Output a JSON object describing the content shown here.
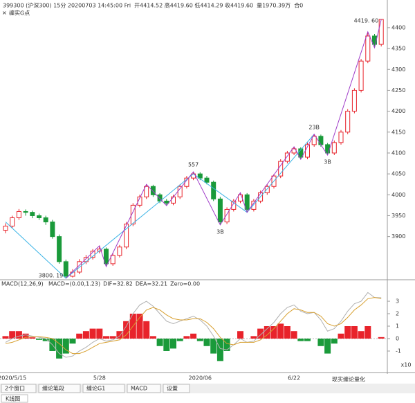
{
  "chart_data": {
    "type": "candlestick",
    "header": [
      {
        "text": "399300 (沪深300) 15分 20200703 14:45:00 Fri",
        "color": "#333333"
      },
      {
        "text": "开4414.52 高4419.60 低4414.29 收4419.60",
        "color": "#333333"
      },
      {
        "text": "量1970.39万",
        "color": "#e08a00"
      },
      {
        "text": "合0",
        "color": "#333333"
      }
    ],
    "indicator_title": "缠实G点",
    "categories": [
      null,
      "2020/5/15",
      null,
      null,
      null,
      null,
      null,
      null,
      null,
      null,
      null,
      null,
      null,
      null,
      "5/28",
      null,
      null,
      null,
      null,
      null,
      null,
      null,
      null,
      null,
      null,
      null,
      null,
      null,
      null,
      "2020/06",
      null,
      null,
      null,
      null,
      null,
      null,
      null,
      null,
      null,
      null,
      null,
      null,
      null,
      "6/22",
      null,
      null,
      null,
      null,
      null,
      null,
      null,
      null,
      null,
      null,
      null,
      null,
      null
    ],
    "ohlc": [
      [
        3915,
        3932,
        3908,
        3925
      ],
      [
        3925,
        3950,
        3920,
        3945
      ],
      [
        3945,
        3966,
        3940,
        3960
      ],
      [
        3960,
        3965,
        3950,
        3958
      ],
      [
        3958,
        3962,
        3944,
        3950
      ],
      [
        3950,
        3955,
        3940,
        3945
      ],
      [
        3945,
        3950,
        3928,
        3935
      ],
      [
        3935,
        3940,
        3895,
        3900
      ],
      [
        3900,
        3905,
        3835,
        3840
      ],
      [
        3840,
        3845,
        3800.19,
        3805
      ],
      [
        3805,
        3822,
        3802,
        3815
      ],
      [
        3815,
        3846,
        3810,
        3840
      ],
      [
        3840,
        3856,
        3834,
        3850
      ],
      [
        3850,
        3870,
        3845,
        3865
      ],
      [
        3865,
        3878,
        3860,
        3870
      ],
      [
        3870,
        3874,
        3828,
        3835
      ],
      [
        3835,
        3860,
        3830,
        3855
      ],
      [
        3855,
        3880,
        3850,
        3875
      ],
      [
        3875,
        3935,
        3870,
        3930
      ],
      [
        3930,
        3980,
        3925,
        3975
      ],
      [
        3975,
        4000,
        3970,
        3995
      ],
      [
        3995,
        4025,
        3990,
        4020
      ],
      [
        4020,
        4024,
        3995,
        4000
      ],
      [
        4000,
        4004,
        3980,
        3985
      ],
      [
        3985,
        3990,
        3974,
        3980
      ],
      [
        3980,
        4000,
        3975,
        3995
      ],
      [
        3995,
        4025,
        3990,
        4020
      ],
      [
        4020,
        4045,
        4015,
        4040
      ],
      [
        4040,
        4055,
        4035,
        4050
      ],
      [
        4050,
        4054,
        4035,
        4040
      ],
      [
        4040,
        4045,
        4025,
        4030
      ],
      [
        4030,
        4034,
        3985,
        3990
      ],
      [
        3990,
        3995,
        3928,
        3935
      ],
      [
        3935,
        3970,
        3930,
        3965
      ],
      [
        3965,
        3990,
        3960,
        3985
      ],
      [
        3985,
        4005,
        3980,
        4000
      ],
      [
        4000,
        4004,
        3958,
        3965
      ],
      [
        3965,
        3990,
        3960,
        3985
      ],
      [
        3985,
        4010,
        3980,
        4005
      ],
      [
        4005,
        4025,
        4000,
        4020
      ],
      [
        4020,
        4050,
        4015,
        4045
      ],
      [
        4045,
        4085,
        4040,
        4080
      ],
      [
        4080,
        4105,
        4075,
        4100
      ],
      [
        4100,
        4115,
        4095,
        4110
      ],
      [
        4110,
        4114,
        4085,
        4090
      ],
      [
        4090,
        4125,
        4085,
        4120
      ],
      [
        4120,
        4145,
        4115,
        4140
      ],
      [
        4140,
        4144,
        4115,
        4120
      ],
      [
        4120,
        4124,
        4095,
        4100
      ],
      [
        4100,
        4130,
        4095,
        4125
      ],
      [
        4125,
        4155,
        4120,
        4150
      ],
      [
        4150,
        4205,
        4145,
        4200
      ],
      [
        4200,
        4255,
        4195,
        4250
      ],
      [
        4250,
        4325,
        4245,
        4320
      ],
      [
        4320,
        4390,
        4315,
        4380
      ],
      [
        4380,
        4385,
        4352,
        4360
      ],
      [
        4360,
        4419.6,
        4355,
        4419.6
      ]
    ],
    "up_color": "#e8232b",
    "down_color": "#1a9a3a",
    "ylim": [
      3800,
      4433
    ],
    "yticks": [
      3900,
      3950,
      4000,
      4050,
      4100,
      4150,
      4200,
      4250,
      4300,
      4350,
      4400
    ],
    "strokes": [
      {
        "color": "#3cb4e6",
        "x": [
          0,
          9,
          28,
          36,
          46
        ],
        "y": [
          3935,
          3800.19,
          4050,
          3958,
          4145
        ]
      },
      {
        "color": "#a03cc8",
        "x": [
          9,
          14,
          15,
          21,
          24,
          28,
          32,
          35,
          36,
          43,
          44,
          46,
          48,
          54,
          55,
          56
        ],
        "y": [
          3800.19,
          3878,
          3828,
          4025,
          3974,
          4055,
          3928,
          4005,
          3958,
          4115,
          4085,
          4145,
          4095,
          4390,
          4352,
          4419.6
        ]
      }
    ],
    "annotations": [
      {
        "text": "3800. 19",
        "x": 9,
        "price": 3800.19
      },
      {
        "text": "4419. 60",
        "x": 56,
        "price": 4419.6
      },
      {
        "text": "3B",
        "x": 32,
        "price": 3928
      },
      {
        "text": "557",
        "x": 28,
        "price": 4055
      },
      {
        "text": "23B",
        "x": 46,
        "price": 4145
      },
      {
        "text": "3B",
        "x": 48,
        "price": 4095
      }
    ],
    "macd": {
      "title": "MACD(12,26,9)",
      "legend": [
        {
          "text": "MACD=(0.00,1.23)",
          "color": "#e8232b"
        },
        {
          "text": "DIF=32.82",
          "color": "#777777"
        },
        {
          "text": "DEA=32.21",
          "color": "#e08a00"
        },
        {
          "text": "Zero=0.00",
          "color": "#777777"
        }
      ],
      "ylim": [
        -2.28,
        4.67
      ],
      "yticks": [
        -1,
        0,
        1,
        2,
        3
      ],
      "unit": "x10",
      "values": [
        0.2,
        0.6,
        0.6,
        0.4,
        0.1,
        -0.1,
        -0.2,
        -1.0,
        -1.6,
        -1.2,
        -0.4,
        0.4,
        0.6,
        0.8,
        0.8,
        0.2,
        0.2,
        0.6,
        1.4,
        2.0,
        2.0,
        1.4,
        0.2,
        -0.6,
        -1.0,
        -0.8,
        -0.2,
        0.2,
        0.4,
        -0.2,
        -0.6,
        -1.2,
        -1.8,
        -1.0,
        0,
        0.6,
        0,
        0.2,
        0.8,
        1.0,
        1.0,
        1.2,
        1.0,
        0.6,
        -0.2,
        -0.2,
        0,
        -0.6,
        -1.2,
        -0.4,
        0.4,
        1.0,
        1.0,
        0.6,
        1.0,
        0,
        0.12
      ],
      "dif": [
        -0.3,
        0,
        0.2,
        0.3,
        0.2,
        0.1,
        0,
        -0.5,
        -1.2,
        -1.5,
        -1.4,
        -1.0,
        -0.7,
        -0.3,
        0,
        -0.2,
        -0.1,
        0.2,
        1.0,
        2.0,
        2.7,
        3.0,
        2.6,
        2.0,
        1.4,
        1.2,
        1.4,
        1.6,
        1.8,
        1.5,
        1.0,
        0.2,
        -0.8,
        -0.9,
        -0.5,
        0,
        -0.3,
        -0.2,
        0.3,
        0.8,
        1.3,
        2.0,
        2.5,
        2.7,
        2.2,
        2.0,
        2.1,
        1.5,
        0.6,
        0.8,
        1.4,
        2.2,
        2.8,
        3.0,
        3.7,
        3.3,
        3.28
      ],
      "dea": [
        -0.4,
        -0.3,
        -0.1,
        0.1,
        0.15,
        0.15,
        0.1,
        0,
        -0.4,
        -0.9,
        -1.2,
        -1.2,
        -1.0,
        -0.7,
        -0.4,
        -0.3,
        -0.2,
        -0.1,
        0.3,
        1.0,
        1.7,
        2.3,
        2.5,
        2.3,
        1.9,
        1.6,
        1.5,
        1.5,
        1.6,
        1.6,
        1.3,
        0.8,
        0.1,
        -0.4,
        -0.5,
        -0.3,
        -0.3,
        -0.3,
        -0.1,
        0.3,
        0.8,
        1.4,
        2.0,
        2.4,
        2.3,
        2.1,
        2.1,
        1.8,
        1.2,
        1.0,
        1.2,
        1.7,
        2.3,
        2.7,
        3.2,
        3.3,
        3.22
      ],
      "dif_color": "#b0b0b0",
      "dea_color": "#d8a030"
    },
    "tabs": [
      "2个窗口",
      "缠论笔段",
      "缠论G1",
      "MACD",
      "设置"
    ],
    "bottom_tab": "K线图",
    "watermark": "现实缠论量化"
  }
}
